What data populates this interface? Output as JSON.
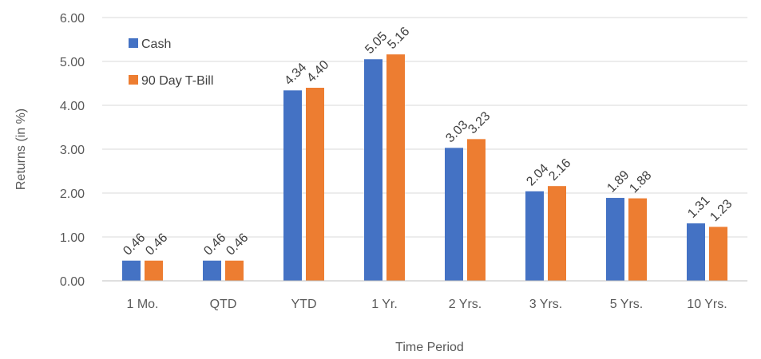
{
  "chart_data": {
    "type": "bar",
    "categories": [
      "1 Mo.",
      "QTD",
      "YTD",
      "1 Yr.",
      "2 Yrs.",
      "3 Yrs.",
      "5 Yrs.",
      "10 Yrs."
    ],
    "series": [
      {
        "name": "Cash",
        "color": "#4472C4",
        "values": [
          0.46,
          0.46,
          4.34,
          5.05,
          3.03,
          2.04,
          1.89,
          1.31
        ]
      },
      {
        "name": "90 Day T-Bill",
        "color": "#ED7D31",
        "values": [
          0.46,
          0.46,
          4.4,
          5.16,
          3.23,
          2.16,
          1.88,
          1.23
        ]
      }
    ],
    "title": "",
    "xlabel": "Time Period",
    "ylabel": "Returns (in %)",
    "ylim": [
      0,
      6
    ],
    "yticks": [
      0,
      1,
      2,
      3,
      4,
      5,
      6
    ],
    "ytick_labels": [
      "0.00",
      "1.00",
      "2.00",
      "3.00",
      "4.00",
      "5.00",
      "6.00"
    ],
    "data_labels": [
      [
        "0.46",
        "0.46",
        "4.34",
        "5.05",
        "3.03",
        "2.04",
        "1.89",
        "1.31"
      ],
      [
        "0.46",
        "0.46",
        "4.40",
        "5.16",
        "3.23",
        "2.16",
        "1.88",
        "1.23"
      ]
    ],
    "grid": true,
    "legend_position": "top-left"
  }
}
